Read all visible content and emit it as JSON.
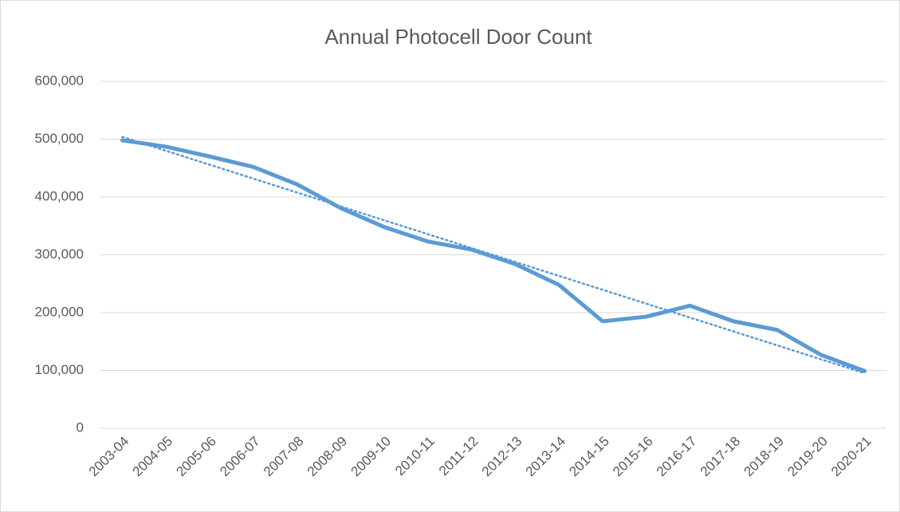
{
  "chart_data": {
    "type": "line",
    "title": "Annual Photocell Door Count",
    "categories": [
      "2003-04",
      "2004-05",
      "2005-06",
      "2006-07",
      "2007-08",
      "2008-09",
      "2009-10",
      "2010-11",
      "2011-12",
      "2012-13",
      "2013-14",
      "2014-15",
      "2015-16",
      "2016-17",
      "2017-18",
      "2018-19",
      "2019-20",
      "2020-21"
    ],
    "values": [
      498000,
      487000,
      470000,
      452000,
      422000,
      381000,
      348000,
      323000,
      309000,
      284000,
      248000,
      185000,
      193000,
      212000,
      185000,
      170000,
      127000,
      99000
    ],
    "color": "#5b9bd5",
    "ylim": [
      0,
      600000
    ],
    "yticks": [
      0,
      {
        "value": 100000,
        "label": "100,000"
      },
      {
        "value": 200000,
        "label": "200,000"
      },
      {
        "value": 300000,
        "label": "300,000"
      },
      {
        "value": 400000,
        "label": "400,000"
      },
      {
        "value": 500000,
        "label": "500,000"
      },
      {
        "value": 600000,
        "label": "600,000"
      }
    ],
    "grid": true,
    "trendline": "linear"
  }
}
